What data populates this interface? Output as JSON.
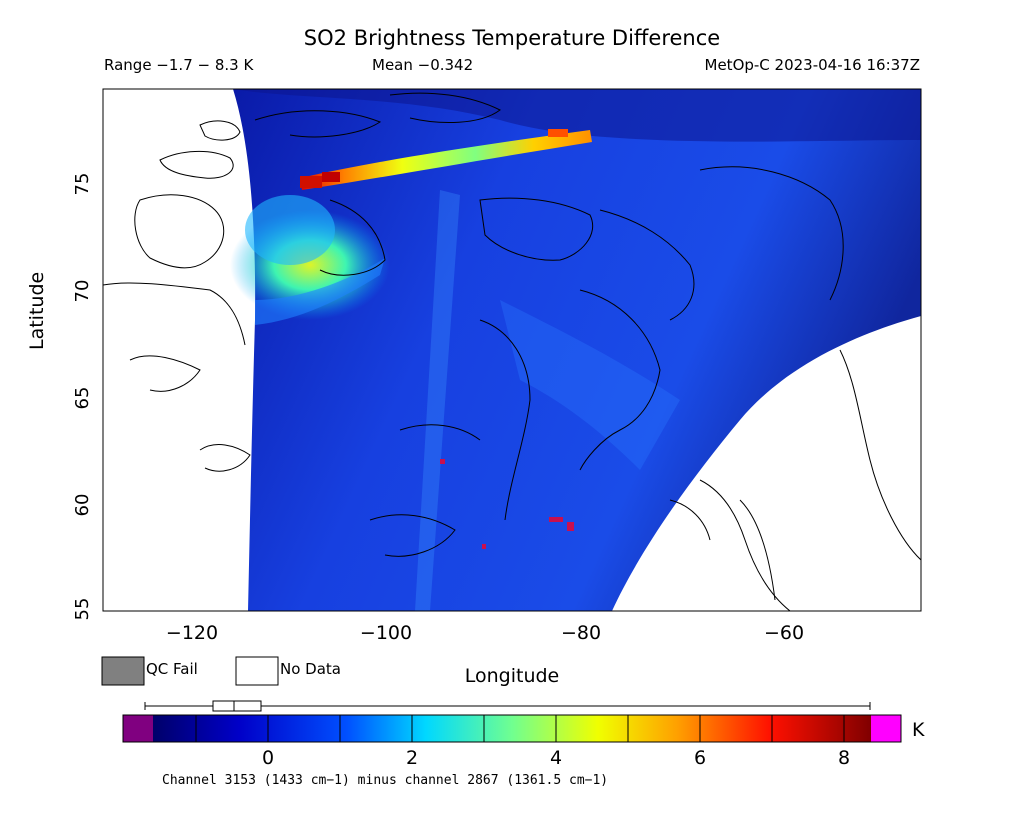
{
  "title": "SO2 Brightness Temperature Difference",
  "header": {
    "range": "Range −1.7 − 8.3 K",
    "mean": "Mean −0.342",
    "satellite": "MetOp-C 2023-04-16 16:37Z"
  },
  "axes": {
    "ylabel": "Latitude",
    "xlabel": "Longitude",
    "yticks": [
      "55",
      "60",
      "65",
      "70",
      "75"
    ],
    "xticks": [
      "−120",
      "−100",
      "−80",
      "−60"
    ]
  },
  "legend": {
    "qc_fail": "QC Fail",
    "no_data": "No Data",
    "qc_fail_color": "#808080",
    "no_data_color": "#ffffff"
  },
  "colorbar": {
    "unit": "K",
    "ticks": [
      "0",
      "2",
      "4",
      "6",
      "8"
    ],
    "tick_values": [
      0,
      2,
      4,
      6,
      8
    ],
    "min": -1.7,
    "max": 8.3,
    "under_color": "#800080",
    "over_color": "#ff00ff",
    "boxplot": {
      "min": -1.7,
      "q1": -0.75,
      "median": -0.45,
      "q3": -0.1,
      "max": 8.3
    }
  },
  "footnote": "Channel 3153 (1433 cm−1) minus channel 2867 (1361.5 cm−1)",
  "chart_data": {
    "type": "heatmap",
    "x_range": [
      -129,
      -47
    ],
    "y_range": [
      55,
      79.4
    ],
    "xlabel": "Longitude",
    "ylabel": "Latitude",
    "background_value_K": -0.5,
    "plume_peaks": [
      {
        "lon": -108,
        "lat": 75.2,
        "value": 8.0
      },
      {
        "lon": -104,
        "lat": 75.6,
        "value": 5.5
      },
      {
        "lon": -96,
        "lat": 76.2,
        "value": 5.0
      },
      {
        "lon": -90,
        "lat": 76.6,
        "value": 4.2
      },
      {
        "lon": -83,
        "lat": 77.2,
        "value": 6.0
      },
      {
        "lon": -110,
        "lat": 71.2,
        "value": 4.3
      },
      {
        "lon": -104,
        "lat": 71.5,
        "value": 3.3
      }
    ],
    "qc_fail_pixels": [
      {
        "lon": -83,
        "lat": 59.5
      },
      {
        "lon": -94,
        "lat": 62.1
      },
      {
        "lon": -90,
        "lat": 58.1
      }
    ]
  }
}
